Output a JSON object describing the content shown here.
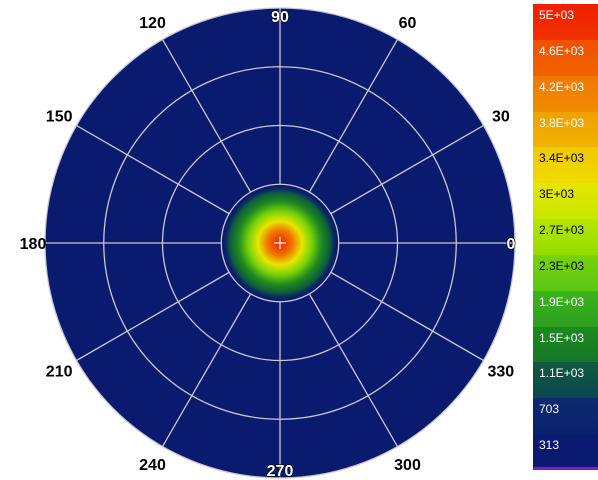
{
  "chart_data": {
    "type": "heatmap",
    "subtype": "polar",
    "angle_ticks": [
      "0",
      "30",
      "60",
      "90",
      "120",
      "150",
      "180",
      "210",
      "240",
      "270",
      "300",
      "330"
    ],
    "radial_grid_rings": 4,
    "grid": true,
    "colorbar": {
      "labels": [
        "5E+03",
        "4.6E+03",
        "4.2E+03",
        "3.8E+03",
        "3.4E+03",
        "3E+03",
        "2.7E+03",
        "2.3E+03",
        "1.9E+03",
        "1.5E+03",
        "1.1E+03",
        "703",
        "313"
      ],
      "range": [
        313,
        5000
      ],
      "placement": "right"
    },
    "distribution": {
      "peak_value": 4900,
      "background_value": 313,
      "peak_location": "center",
      "width_fraction_of_radius": 0.1
    },
    "center_marker": "+"
  },
  "colors": {
    "background": "#0a1a6e",
    "grid": "#c8c8d2",
    "colormap": [
      "#0a1a6e",
      "#0b2a6e",
      "#0e5a3c",
      "#1e8a1e",
      "#3cb41e",
      "#78d20a",
      "#b4e600",
      "#e6e600",
      "#f0c800",
      "#f0a000",
      "#f07800",
      "#f05000",
      "#f01e00"
    ]
  }
}
